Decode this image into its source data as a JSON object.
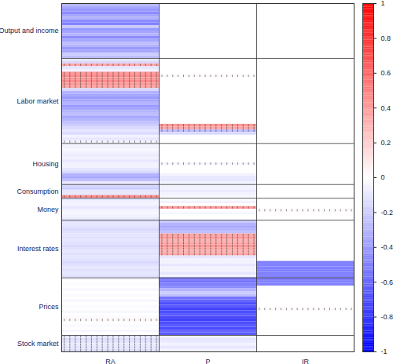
{
  "chart_data": {
    "type": "heatmap",
    "columns": [
      "RA",
      "P",
      "IR"
    ],
    "groups": [
      {
        "name": "Output and income",
        "values": {
          "RA": [
            -0.3,
            -0.35,
            -0.4,
            -0.45,
            -0.35,
            -0.3,
            -0.45,
            -0.5,
            -0.2,
            -0.4,
            -0.35,
            -0.3,
            -0.45,
            -0.35,
            -0.25,
            -0.3,
            -0.4,
            -0.35,
            -0.2,
            -0.25
          ],
          "P": [
            0,
            0,
            0,
            0,
            0,
            0,
            0,
            0,
            0,
            0,
            0,
            0,
            0,
            0,
            0,
            0,
            0,
            0,
            0,
            0
          ],
          "IR": [
            0,
            0,
            0,
            0,
            0,
            0,
            0,
            0,
            0,
            0,
            0,
            0,
            0,
            0,
            0,
            0,
            0,
            0,
            0,
            0
          ]
        },
        "marked": {
          "RA": [],
          "P": [],
          "IR": []
        }
      },
      {
        "name": "Labor market",
        "values": {
          "RA": [
            -0.1,
            -0.15,
            0.35,
            -0.1,
            -0.05,
            0.4,
            0.45,
            0.4,
            0.45,
            0.4,
            0.35,
            -0.15,
            -0.3,
            -0.35,
            -0.4,
            -0.35,
            -0.3,
            -0.4,
            -0.35,
            -0.3,
            -0.25,
            -0.35,
            -0.3,
            -0.25,
            -0.2,
            -0.15,
            -0.1,
            -0.15,
            -0.05,
            -0.1,
            -0.05
          ],
          "P": [
            0,
            0,
            0,
            0,
            0,
            0,
            0.02,
            0,
            0,
            0,
            0,
            0,
            0,
            0,
            0,
            0,
            0,
            0,
            0,
            0,
            0,
            0,
            0,
            0,
            0.4,
            0.35,
            -0.25,
            -0.15,
            0,
            0,
            0
          ],
          "IR": [
            0,
            0,
            0,
            0,
            0,
            0,
            0,
            0,
            0,
            0,
            0,
            0,
            0,
            0,
            0,
            0,
            0,
            0,
            0,
            0,
            0,
            0,
            0,
            0,
            0,
            0,
            0,
            0,
            0,
            0,
            0
          ]
        },
        "marked": {
          "RA": [
            2,
            5,
            6,
            7,
            8,
            9,
            10,
            30
          ],
          "P": [
            6,
            24,
            25,
            26
          ],
          "IR": []
        }
      },
      {
        "name": "Housing",
        "values": {
          "RA": [
            -0.05,
            -0.05,
            -0.03,
            -0.05,
            -0.08,
            -0.05,
            -0.1,
            -0.05,
            -0.05,
            -0.1,
            -0.15,
            -0.3,
            -0.35,
            -0.25,
            -0.1
          ],
          "P": [
            0,
            0,
            0,
            0,
            0,
            0,
            0,
            -0.03,
            0,
            0,
            0,
            -0.05,
            -0.1,
            -0.1,
            -0.05
          ],
          "IR": [
            0,
            0,
            0,
            0,
            0,
            0,
            0,
            0,
            0,
            0,
            0,
            0,
            0,
            0,
            0
          ]
        },
        "marked": {
          "RA": [],
          "P": [
            7
          ],
          "IR": []
        }
      },
      {
        "name": "Consumption",
        "values": {
          "RA": [
            -0.15,
            -0.2,
            -0.1,
            -0.1,
            0.45
          ],
          "P": [
            -0.05,
            -0.05,
            -0.08,
            -0.05,
            -0.03
          ],
          "IR": [
            0,
            0,
            0,
            0,
            0
          ]
        },
        "marked": {
          "RA": [
            4
          ],
          "P": [],
          "IR": []
        }
      },
      {
        "name": "Money",
        "values": {
          "RA": [
            -0.1,
            -0.05,
            -0.05,
            -0.1,
            -0.05,
            -0.03,
            -0.05,
            -0.08
          ],
          "P": [
            0,
            -0.05,
            0,
            0.4,
            0,
            -0.03,
            0,
            0
          ],
          "IR": [
            0,
            0,
            0,
            0,
            0.02,
            0,
            0,
            0
          ]
        },
        "marked": {
          "RA": [],
          "P": [
            3
          ],
          "IR": [
            4
          ]
        }
      },
      {
        "name": "Interest rates",
        "values": {
          "RA": [
            -0.12,
            -0.1,
            -0.12,
            -0.15,
            -0.12,
            -0.1,
            -0.12,
            -0.1,
            -0.12,
            -0.15,
            -0.12,
            -0.1,
            -0.12,
            -0.1,
            -0.12,
            -0.15,
            -0.12,
            -0.1,
            -0.12,
            -0.1,
            -0.12
          ],
          "P": [
            -0.2,
            -0.3,
            -0.35,
            -0.3,
            -0.25,
            0.35,
            0.4,
            0.3,
            0.35,
            0.4,
            0.35,
            0.3,
            0.35,
            -0.1,
            -0.05,
            -0.05,
            -0.1,
            -0.05,
            -0.05,
            -0.1,
            -0.05
          ],
          "IR": [
            0,
            0,
            0,
            0,
            0,
            0,
            0,
            0,
            0,
            0,
            0,
            0,
            0,
            0,
            0,
            -0.5,
            -0.5,
            -0.5,
            -0.5,
            -0.5,
            -0.5
          ]
        },
        "marked": {
          "RA": [],
          "P": [
            5,
            6,
            7,
            8,
            9,
            10,
            11,
            12
          ],
          "IR": []
        }
      },
      {
        "name": "Prices",
        "values": {
          "RA": [
            -0.03,
            0,
            -0.02,
            0,
            -0.03,
            0,
            -0.02,
            0,
            -0.03,
            0,
            -0.02,
            0,
            -0.03,
            0,
            -0.02,
            0.03,
            0,
            -0.02,
            0,
            -0.03,
            0
          ],
          "P": [
            -0.5,
            -0.55,
            -0.5,
            -0.45,
            -0.3,
            -0.2,
            -0.25,
            -0.55,
            -0.6,
            -0.7,
            -0.65,
            -0.75,
            -0.7,
            -0.65,
            -0.7,
            -0.75,
            -0.7,
            -0.65,
            -0.7,
            -0.6,
            -0.65
          ],
          "IR": [
            -0.5,
            -0.5,
            -0.5,
            0,
            0,
            0,
            0,
            0,
            0,
            0,
            0,
            0.02,
            0,
            0,
            0,
            0,
            0,
            0,
            0,
            0,
            0
          ]
        },
        "marked": {
          "RA": [
            15
          ],
          "P": [],
          "IR": [
            11
          ]
        }
      },
      {
        "name": "Stock market",
        "values": {
          "RA": [
            -0.1,
            -0.12,
            -0.1,
            -0.08,
            -0.1,
            -0.12
          ],
          "P": [
            -0.05,
            -0.1,
            -0.08,
            -0.05,
            -0.1,
            -0.05
          ],
          "IR": [
            0,
            0,
            0,
            0,
            0,
            0
          ]
        },
        "marked": {
          "RA": [
            0,
            1,
            2,
            3,
            4,
            5
          ],
          "P": [],
          "IR": []
        }
      }
    ],
    "colorbar": {
      "range": [
        -1,
        1
      ],
      "ticks": [
        -1,
        -0.8,
        -0.6,
        -0.4,
        -0.2,
        0,
        0.2,
        0.4,
        0.6,
        0.8,
        1
      ]
    }
  }
}
